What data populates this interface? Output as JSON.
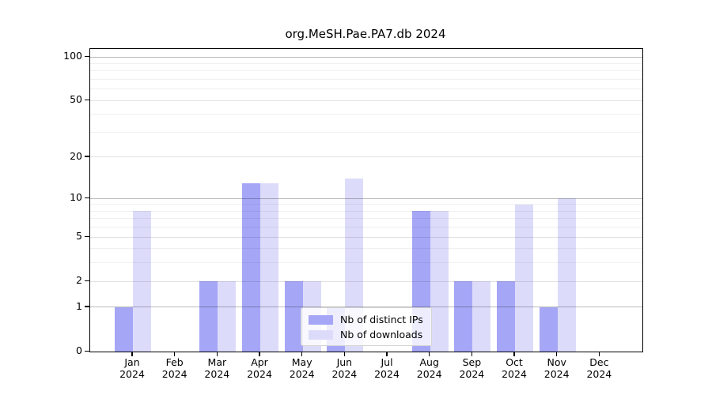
{
  "chart_data": {
    "type": "bar",
    "title": "org.MeSH.Pae.PA7.db 2024",
    "categories": [
      "Jan",
      "Feb",
      "Mar",
      "Apr",
      "May",
      "Jun",
      "Jul",
      "Aug",
      "Sep",
      "Oct",
      "Nov",
      "Dec"
    ],
    "year_label": "2024",
    "series": [
      {
        "name": "Nb of distinct IPs",
        "color": "#a6a6f7",
        "values": [
          1,
          0,
          2,
          13,
          2,
          1,
          0,
          8,
          2,
          2,
          1,
          0
        ]
      },
      {
        "name": "Nb of downloads",
        "color": "#dcdcfa",
        "values": [
          8,
          0,
          2,
          13,
          2,
          14,
          0,
          8,
          2,
          9,
          10,
          0
        ]
      }
    ],
    "y_scale": "log1p",
    "ylim": [
      0,
      100
    ],
    "y_ticks": [
      0,
      1,
      2,
      5,
      10,
      20,
      50,
      100
    ],
    "y_decade_ticks": [
      1,
      10,
      100
    ],
    "y_minor_ticks": [
      3,
      4,
      6,
      7,
      8,
      9,
      30,
      40,
      60,
      70,
      80,
      90
    ],
    "grid": true,
    "legend_position": "bottom-center",
    "xlabel": "",
    "ylabel": ""
  },
  "colors": {
    "axis": "#000000",
    "grid_decade": "rgba(0,0,0,0.27)",
    "grid_mid": "rgba(0,0,0,0.115)",
    "grid_minor": "rgba(0,0,0,0.06)",
    "legend_border": "#d4d4d4",
    "legend_background": "rgba(255,255,255,0.8)"
  }
}
